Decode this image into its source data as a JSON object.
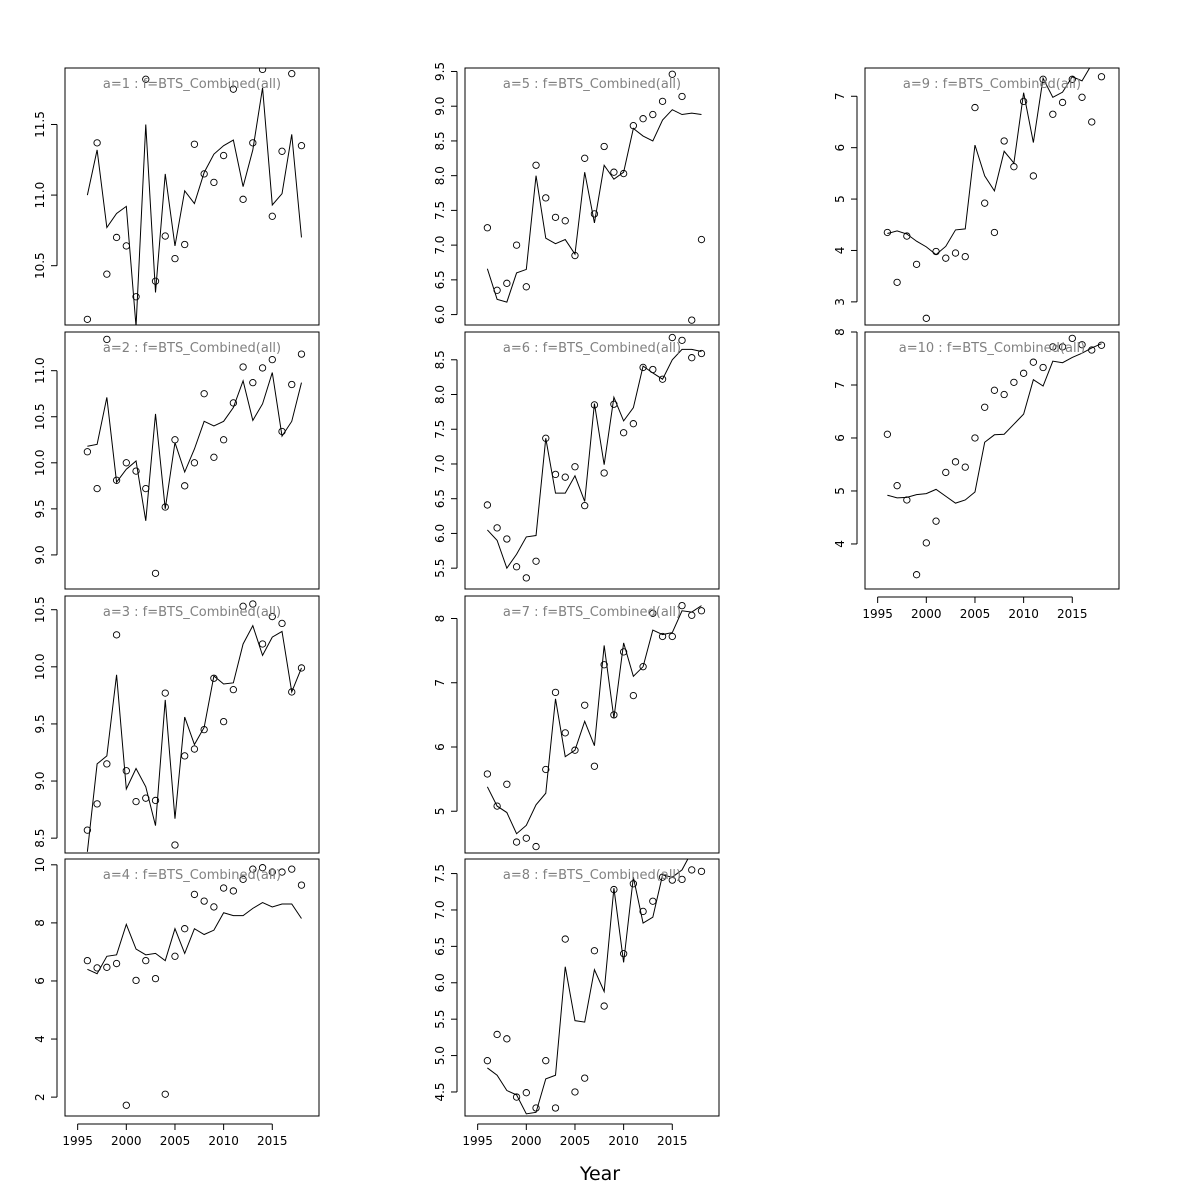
{
  "figure": {
    "xlabel": "Year"
  },
  "chart_data": [
    {
      "type": "line",
      "title": "a=1  :  f=BTS_Combined(all)",
      "xlabel": "",
      "ylabel": "",
      "ylim": [
        10.08,
        11.9
      ],
      "yticks": [
        10.5,
        11.0,
        11.5
      ],
      "show_x_axis": false,
      "x": [
        1996,
        1997,
        1998,
        1999,
        2000,
        2001,
        2002,
        2003,
        2004,
        2005,
        2006,
        2007,
        2008,
        2009,
        2010,
        2011,
        2012,
        2013,
        2014,
        2015,
        2016,
        2017,
        2018
      ],
      "series": [
        {
          "kind": "points",
          "values": [
            10.12,
            11.37,
            10.44,
            10.7,
            10.64,
            10.28,
            11.82,
            10.39,
            10.71,
            10.55,
            10.65,
            11.36,
            11.15,
            11.09,
            11.28,
            11.75,
            10.97,
            11.37,
            11.89,
            10.85,
            11.31,
            11.86,
            11.35
          ]
        },
        {
          "kind": "line",
          "values": [
            11.0,
            11.32,
            10.77,
            10.87,
            10.92,
            10.07,
            11.5,
            10.31,
            11.15,
            10.64,
            11.03,
            10.94,
            11.16,
            11.29,
            11.35,
            11.39,
            11.06,
            11.32,
            11.76,
            10.93,
            11.01,
            11.43,
            10.7
          ]
        }
      ]
    },
    {
      "type": "line",
      "title": "a=2  :  f=BTS_Combined(all)",
      "xlabel": "",
      "ylabel": "",
      "ylim": [
        8.63,
        11.42
      ],
      "yticks": [
        9.0,
        9.5,
        10.0,
        10.5,
        11.0
      ],
      "show_x_axis": false,
      "x": [
        1996,
        1997,
        1998,
        1999,
        2000,
        2001,
        2002,
        2003,
        2004,
        2005,
        2006,
        2007,
        2008,
        2009,
        2010,
        2011,
        2012,
        2013,
        2014,
        2015,
        2016,
        2017,
        2018
      ],
      "series": [
        {
          "kind": "points",
          "values": [
            10.12,
            9.72,
            11.34,
            9.81,
            10.0,
            9.91,
            9.72,
            8.8,
            9.52,
            10.25,
            9.75,
            10.0,
            10.75,
            10.06,
            10.25,
            10.65,
            11.04,
            10.87,
            11.03,
            11.12,
            10.34,
            10.85,
            11.18
          ]
        },
        {
          "kind": "line",
          "values": [
            10.18,
            10.2,
            10.71,
            9.79,
            9.93,
            10.02,
            9.37,
            10.53,
            9.5,
            10.22,
            9.9,
            10.15,
            10.45,
            10.4,
            10.45,
            10.6,
            10.89,
            10.46,
            10.64,
            10.98,
            10.29,
            10.45,
            10.87
          ]
        }
      ]
    },
    {
      "type": "line",
      "title": "a=3  :  f=BTS_Combined(all)",
      "xlabel": "",
      "ylabel": "",
      "ylim": [
        8.37,
        10.62
      ],
      "yticks": [
        8.5,
        9.0,
        9.5,
        10.0,
        10.5
      ],
      "show_x_axis": false,
      "x": [
        1996,
        1997,
        1998,
        1999,
        2000,
        2001,
        2002,
        2003,
        2004,
        2005,
        2006,
        2007,
        2008,
        2009,
        2010,
        2011,
        2012,
        2013,
        2014,
        2015,
        2016,
        2017,
        2018
      ],
      "series": [
        {
          "kind": "points",
          "values": [
            8.57,
            8.8,
            9.15,
            10.28,
            9.09,
            8.82,
            8.85,
            8.83,
            9.77,
            8.44,
            9.22,
            9.28,
            9.45,
            9.9,
            9.52,
            9.8,
            10.53,
            10.55,
            10.2,
            10.44,
            10.38,
            9.78,
            9.99
          ]
        },
        {
          "kind": "line",
          "values": [
            8.38,
            9.15,
            9.22,
            9.93,
            8.93,
            9.11,
            8.95,
            8.61,
            9.71,
            8.67,
            9.56,
            9.32,
            9.47,
            9.92,
            9.85,
            9.86,
            10.2,
            10.36,
            10.1,
            10.26,
            10.31,
            9.78,
            9.99
          ]
        }
      ]
    },
    {
      "type": "line",
      "title": "a=4  :  f=BTS_Combined(all)",
      "xlabel": "",
      "ylabel": "",
      "ylim": [
        1.35,
        10.2
      ],
      "yticks": [
        2,
        4,
        6,
        8,
        10
      ],
      "show_x_axis": true,
      "xticks": [
        1995,
        2000,
        2005,
        2010,
        2015
      ],
      "x": [
        1996,
        1997,
        1998,
        1999,
        2000,
        2001,
        2002,
        2003,
        2004,
        2005,
        2006,
        2007,
        2008,
        2009,
        2010,
        2011,
        2012,
        2013,
        2014,
        2015,
        2016,
        2017,
        2018
      ],
      "series": [
        {
          "kind": "points",
          "values": [
            6.7,
            6.45,
            6.47,
            6.6,
            1.72,
            6.02,
            6.7,
            6.08,
            2.1,
            6.85,
            7.8,
            8.98,
            8.75,
            8.55,
            9.2,
            9.1,
            9.5,
            9.85,
            9.9,
            9.75,
            9.75,
            9.85,
            9.3
          ]
        },
        {
          "kind": "line",
          "values": [
            6.4,
            6.25,
            6.85,
            6.9,
            7.95,
            7.1,
            6.9,
            6.95,
            6.7,
            7.8,
            6.95,
            7.8,
            7.6,
            7.75,
            8.35,
            8.25,
            8.25,
            8.5,
            8.7,
            8.55,
            8.65,
            8.65,
            8.15
          ]
        }
      ]
    },
    {
      "type": "line",
      "title": "a=5  :  f=BTS_Combined(all)",
      "xlabel": "",
      "ylabel": "",
      "ylim": [
        5.85,
        9.55
      ],
      "yticks": [
        6.0,
        6.5,
        7.0,
        7.5,
        8.0,
        8.5,
        9.0,
        9.5
      ],
      "show_x_axis": false,
      "x": [
        1996,
        1997,
        1998,
        1999,
        2000,
        2001,
        2002,
        2003,
        2004,
        2005,
        2006,
        2007,
        2008,
        2009,
        2010,
        2011,
        2012,
        2013,
        2014,
        2015,
        2016,
        2017,
        2018
      ],
      "series": [
        {
          "kind": "points",
          "values": [
            7.25,
            6.35,
            6.45,
            7.0,
            6.4,
            8.15,
            7.68,
            7.4,
            7.35,
            6.85,
            8.25,
            7.45,
            8.42,
            8.05,
            8.03,
            8.72,
            8.82,
            8.88,
            9.07,
            9.46,
            9.14,
            5.92,
            7.08
          ]
        },
        {
          "kind": "line",
          "values": [
            6.66,
            6.22,
            6.18,
            6.6,
            6.65,
            8.0,
            7.1,
            7.02,
            7.08,
            6.87,
            8.05,
            7.32,
            8.15,
            7.95,
            8.05,
            8.68,
            8.57,
            8.5,
            8.8,
            8.95,
            8.88,
            8.9,
            8.88
          ]
        }
      ]
    },
    {
      "type": "line",
      "title": "a=6  :  f=BTS_Combined(all)",
      "xlabel": "",
      "ylabel": "",
      "ylim": [
        5.2,
        8.9
      ],
      "yticks": [
        5.5,
        6.0,
        6.5,
        7.0,
        7.5,
        8.0,
        8.5
      ],
      "show_x_axis": false,
      "x": [
        1996,
        1997,
        1998,
        1999,
        2000,
        2001,
        2002,
        2003,
        2004,
        2005,
        2006,
        2007,
        2008,
        2009,
        2010,
        2011,
        2012,
        2013,
        2014,
        2015,
        2016,
        2017,
        2018
      ],
      "series": [
        {
          "kind": "points",
          "values": [
            6.41,
            6.08,
            5.92,
            5.52,
            5.36,
            5.6,
            7.37,
            6.85,
            6.81,
            6.96,
            6.4,
            7.85,
            6.87,
            7.86,
            7.45,
            7.58,
            8.39,
            8.36,
            8.22,
            8.82,
            8.78,
            8.53,
            8.59
          ]
        },
        {
          "kind": "line",
          "values": [
            6.05,
            5.9,
            5.5,
            5.7,
            5.95,
            5.97,
            7.37,
            6.58,
            6.58,
            6.83,
            6.46,
            7.87,
            6.99,
            7.96,
            7.62,
            7.81,
            8.41,
            8.31,
            8.22,
            8.5,
            8.65,
            8.65,
            8.62
          ]
        }
      ]
    },
    {
      "type": "line",
      "title": "a=7  :  f=BTS_Combined(all)",
      "xlabel": "",
      "ylabel": "",
      "ylim": [
        4.35,
        8.35
      ],
      "yticks": [
        5,
        6,
        7,
        8
      ],
      "show_x_axis": false,
      "x": [
        1996,
        1997,
        1998,
        1999,
        2000,
        2001,
        2002,
        2003,
        2004,
        2005,
        2006,
        2007,
        2008,
        2009,
        2010,
        2011,
        2012,
        2013,
        2014,
        2015,
        2016,
        2017,
        2018
      ],
      "series": [
        {
          "kind": "points",
          "values": [
            5.58,
            5.08,
            5.42,
            4.52,
            4.58,
            4.45,
            5.65,
            6.85,
            6.22,
            5.95,
            6.65,
            5.7,
            7.28,
            6.5,
            7.48,
            6.8,
            7.25,
            8.08,
            7.72,
            7.72,
            8.2,
            8.05,
            8.12
          ]
        },
        {
          "kind": "line",
          "values": [
            5.38,
            5.08,
            4.98,
            4.65,
            4.78,
            5.1,
            5.28,
            6.75,
            5.85,
            5.95,
            6.4,
            6.02,
            7.58,
            6.45,
            7.62,
            7.1,
            7.25,
            7.82,
            7.75,
            7.78,
            8.12,
            8.1,
            8.2
          ]
        }
      ]
    },
    {
      "type": "line",
      "title": "a=8  :  f=BTS_Combined(all)",
      "xlabel": "",
      "ylabel": "",
      "ylim": [
        4.17,
        7.7
      ],
      "yticks": [
        4.5,
        5.0,
        5.5,
        6.0,
        6.5,
        7.0,
        7.5
      ],
      "show_x_axis": true,
      "xticks": [
        1995,
        2000,
        2005,
        2010,
        2015
      ],
      "x": [
        1996,
        1997,
        1998,
        1999,
        2000,
        2001,
        2002,
        2003,
        2004,
        2005,
        2006,
        2007,
        2008,
        2009,
        2010,
        2011,
        2012,
        2013,
        2014,
        2015,
        2016,
        2017,
        2018
      ],
      "series": [
        {
          "kind": "points",
          "values": [
            4.93,
            5.29,
            5.23,
            4.43,
            4.49,
            4.28,
            4.93,
            4.28,
            6.6,
            4.5,
            4.69,
            6.44,
            5.68,
            7.28,
            6.4,
            7.36,
            6.98,
            7.12,
            7.45,
            7.41,
            7.42,
            7.55,
            7.53
          ]
        },
        {
          "kind": "line",
          "values": [
            4.83,
            4.73,
            4.52,
            4.46,
            4.2,
            4.22,
            4.68,
            4.73,
            6.22,
            5.48,
            5.46,
            6.18,
            5.88,
            7.3,
            6.28,
            7.45,
            6.82,
            6.9,
            7.48,
            7.45,
            7.55,
            7.8,
            7.95
          ]
        }
      ]
    },
    {
      "type": "line",
      "title": "a=9  :  f=BTS_Combined(all)",
      "xlabel": "",
      "ylabel": "",
      "ylim": [
        2.55,
        7.55
      ],
      "yticks": [
        3,
        4,
        5,
        6,
        7
      ],
      "show_x_axis": false,
      "x": [
        1996,
        1997,
        1998,
        1999,
        2000,
        2001,
        2002,
        2003,
        2004,
        2005,
        2006,
        2007,
        2008,
        2009,
        2010,
        2011,
        2012,
        2013,
        2014,
        2015,
        2016,
        2017,
        2018
      ],
      "series": [
        {
          "kind": "points",
          "values": [
            4.35,
            3.38,
            4.28,
            3.73,
            2.68,
            3.98,
            3.85,
            3.95,
            3.88,
            6.78,
            4.92,
            4.35,
            6.13,
            5.63,
            6.9,
            5.45,
            7.33,
            6.65,
            6.88,
            7.33,
            6.98,
            6.5,
            7.38
          ]
        },
        {
          "kind": "line",
          "values": [
            4.33,
            4.38,
            4.32,
            4.18,
            4.07,
            3.92,
            4.08,
            4.4,
            4.42,
            6.05,
            5.45,
            5.16,
            5.93,
            5.7,
            7.07,
            6.1,
            7.35,
            6.98,
            7.08,
            7.38,
            7.3,
            7.62,
            7.95
          ]
        }
      ]
    },
    {
      "type": "line",
      "title": "a=10  :  f=BTS_Combined(all)",
      "xlabel": "",
      "ylabel": "",
      "ylim": [
        3.15,
        8.0
      ],
      "yticks": [
        4,
        5,
        6,
        7,
        8
      ],
      "show_x_axis": true,
      "xticks": [
        1995,
        2000,
        2005,
        2010,
        2015
      ],
      "x": [
        1996,
        1997,
        1998,
        1999,
        2000,
        2001,
        2002,
        2003,
        2004,
        2005,
        2006,
        2007,
        2008,
        2009,
        2010,
        2011,
        2012,
        2013,
        2014,
        2015,
        2016,
        2017,
        2018
      ],
      "series": [
        {
          "kind": "points",
          "values": [
            6.07,
            5.1,
            4.83,
            3.42,
            4.02,
            4.43,
            5.35,
            5.55,
            5.45,
            6.0,
            6.58,
            6.9,
            6.82,
            7.05,
            7.22,
            7.43,
            7.33,
            7.72,
            7.72,
            7.88,
            7.76,
            7.66,
            7.75
          ]
        },
        {
          "kind": "line",
          "values": [
            4.92,
            4.87,
            4.88,
            4.93,
            4.95,
            5.03,
            4.9,
            4.77,
            4.83,
            4.98,
            5.92,
            6.06,
            6.07,
            6.26,
            6.45,
            7.1,
            6.98,
            7.45,
            7.42,
            7.52,
            7.6,
            7.7,
            7.78
          ]
        }
      ]
    }
  ]
}
